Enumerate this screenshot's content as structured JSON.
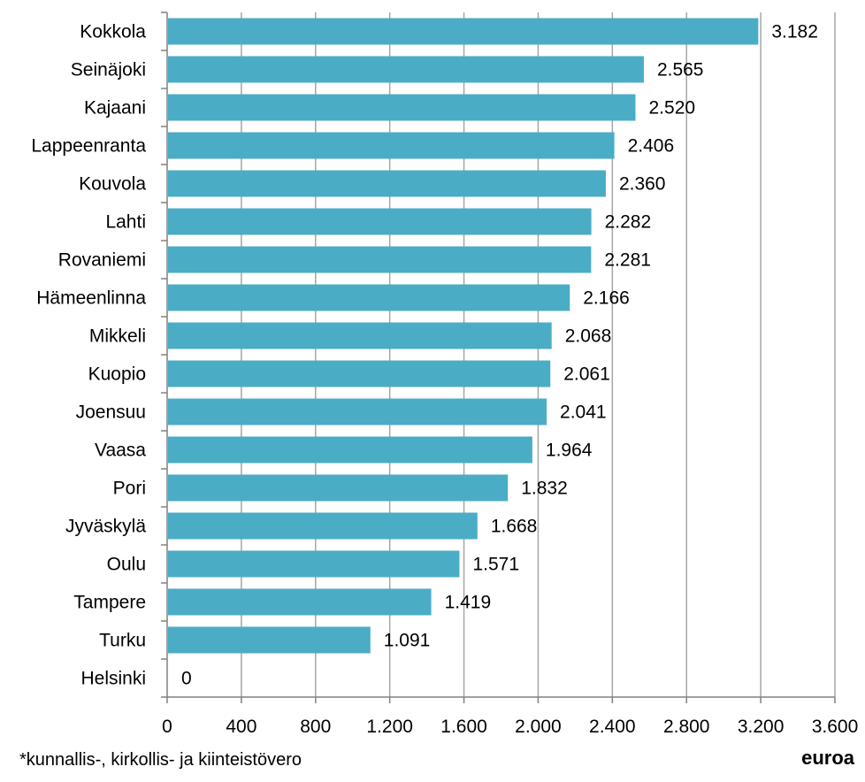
{
  "chart_data": {
    "type": "bar",
    "orientation": "horizontal",
    "categories": [
      "Kokkola",
      "Seinäjoki",
      "Kajaani",
      "Lappeenranta",
      "Kouvola",
      "Lahti",
      "Rovaniemi",
      "Hämeenlinna",
      "Mikkeli",
      "Kuopio",
      "Joensuu",
      "Vaasa",
      "Pori",
      "Jyväskylä",
      "Oulu",
      "Tampere",
      "Turku",
      "Helsinki"
    ],
    "values": [
      3182,
      2565,
      2520,
      2406,
      2360,
      2282,
      2281,
      2166,
      2068,
      2061,
      2041,
      1964,
      1832,
      1668,
      1571,
      1419,
      1091,
      0
    ],
    "value_labels": [
      "3.182",
      "2.565",
      "2.520",
      "2.406",
      "2.360",
      "2.282",
      "2.281",
      "2.166",
      "2.068",
      "2.061",
      "2.041",
      "1.964",
      "1.832",
      "1.668",
      "1.571",
      "1.419",
      "1.091",
      "0"
    ],
    "x_ticks": [
      0,
      400,
      800,
      1200,
      1600,
      2000,
      2400,
      2800,
      3200,
      3600
    ],
    "x_tick_labels": [
      "0",
      "400",
      "800",
      "1.200",
      "1.600",
      "2.000",
      "2.400",
      "2.800",
      "3.200",
      "3.600"
    ],
    "xlim": [
      0,
      3600
    ],
    "grid": "vertical",
    "legend": "none",
    "bar_color": "#4BACC6",
    "grid_color": "#A6A6A6",
    "axis_color": "#808080",
    "title": "",
    "xlabel": "euroa",
    "ylabel": ""
  },
  "footnote": "*kunnallis-, kirkollis- ja kiinteistövero"
}
